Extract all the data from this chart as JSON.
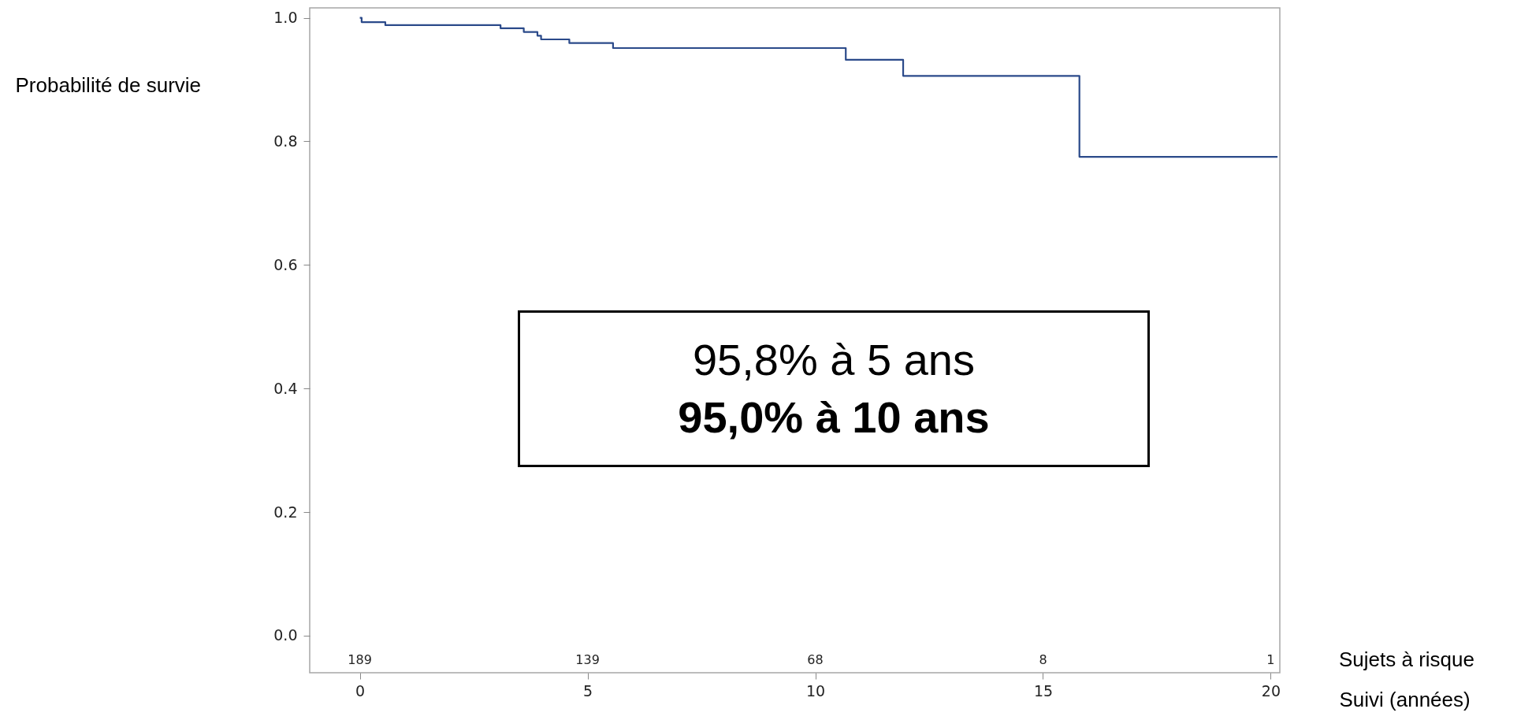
{
  "chart_data": {
    "type": "step",
    "ylabel": "Probabilité de survie",
    "xlabel": "Suivi (années)",
    "x": [
      0,
      0.04,
      0.56,
      3.09,
      3.6,
      3.9,
      3.98,
      4.6,
      5.56,
      10.67,
      11.93,
      15.8,
      20.15
    ],
    "series": [
      {
        "color": "#2b4a8a",
        "values": [
          1,
          0.993,
          0.988,
          0.983,
          0.977,
          0.971,
          0.965,
          0.959,
          0.951,
          0.932,
          0.906,
          0.775,
          0.775
        ]
      }
    ],
    "xlim": [
      -1.1,
      20.2
    ],
    "xticks": [
      0,
      5,
      10,
      15,
      20
    ],
    "ylim": [
      -0.06,
      1.016
    ],
    "yticks": [
      {
        "value": 0,
        "label": "0.0"
      },
      {
        "value": 0.2,
        "label": "0.2"
      },
      {
        "value": 0.4,
        "label": "0.4"
      },
      {
        "value": 0.6,
        "label": "0.6"
      },
      {
        "value": 0.8,
        "label": "0.8"
      },
      {
        "value": 1,
        "label": "1.0"
      }
    ],
    "grid": false,
    "line_style": "solid",
    "marker": "none",
    "annotations": [
      "95,8% à 5 ans",
      "95,0% à 10 ans",
      "Sujets à risque",
      "189",
      "139",
      "68",
      "8",
      "1"
    ]
  }
}
